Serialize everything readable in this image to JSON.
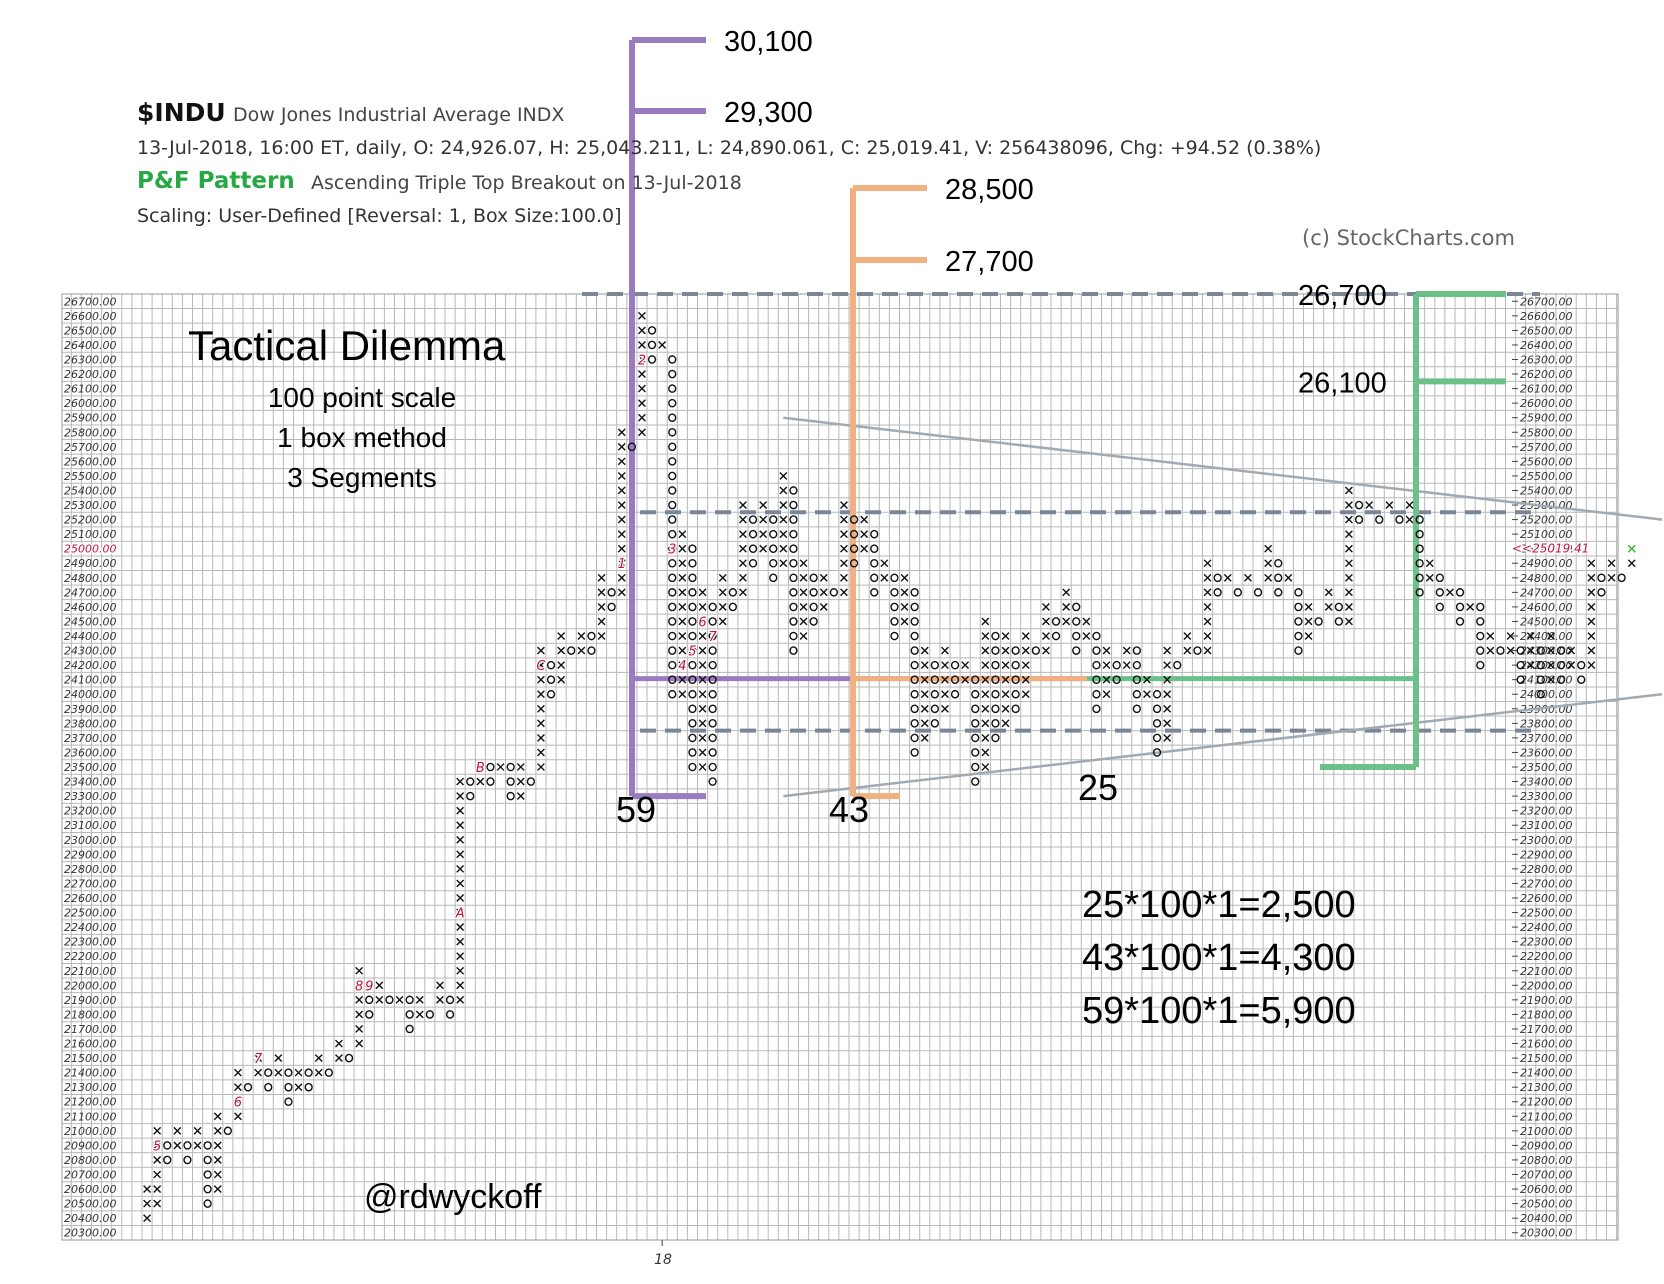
{
  "header": {
    "symbol": "$INDU",
    "name": "Dow Jones Industrial Average  INDX",
    "quote": "13-Jul-2018, 16:00 ET, daily, O: 24,926.07, H: 25,043.211, L: 24,890.061, C: 25,019.41, V: 256438096, Chg: +94.52 (0.38%)",
    "pattern_label": "P&F Pattern",
    "pattern_text": "Ascending Triple Top Breakout on 13-Jul-2018",
    "scaling": "Scaling: User-Defined [Reversal: 1, Box Size:100.0]",
    "copyright": "(c) StockCharts.com"
  },
  "annotations": {
    "title": "Tactical Dilemma",
    "subtitle_lines": [
      "100 point scale",
      "1 box method",
      "3 Segments"
    ],
    "handle": "@rdwyckoff",
    "calculations": [
      "25*100*1=2,500",
      "43*100*1=4,300",
      "59*100*1=5,900"
    ]
  },
  "colors": {
    "x_mark": "#111111",
    "o_mark": "#111111",
    "grid": "#b8b8b8",
    "purple": "#9b7bbf",
    "orange": "#f0b080",
    "green": "#6cc08a",
    "dashed": "#7a8595",
    "trend": "#a0aab4",
    "month_label": "#c0143c",
    "last_price": "#c0143c",
    "last_x": "#2db82d"
  },
  "chart_data": {
    "type": "point-and-figure",
    "box_size": 100,
    "reversal": 1,
    "y_range": [
      20300,
      26700
    ],
    "year_label": "18",
    "last_price_label": "<<25019.41",
    "left_axis_marker": "25000.00",
    "columns": [
      {
        "type": "X",
        "low": 20400,
        "high": 20600
      },
      {
        "type": "X",
        "low": 20500,
        "high": 21000
      },
      {
        "type": "O",
        "low": 20800,
        "high": 20900
      },
      {
        "type": "X",
        "low": 20900,
        "high": 21000
      },
      {
        "type": "O",
        "low": 20800,
        "high": 20900
      },
      {
        "type": "X",
        "low": 20900,
        "high": 21000
      },
      {
        "type": "O",
        "low": 20500,
        "high": 20900
      },
      {
        "type": "X",
        "low": 20600,
        "high": 21100
      },
      {
        "type": "O",
        "low": 21000,
        "high": 21000
      },
      {
        "type": "X",
        "low": 21100,
        "high": 21400
      },
      {
        "type": "O",
        "low": 21300,
        "high": 21300
      },
      {
        "type": "X",
        "low": 21400,
        "high": 21500
      },
      {
        "type": "O",
        "low": 21300,
        "high": 21400
      },
      {
        "type": "X",
        "low": 21400,
        "high": 21500
      },
      {
        "type": "O",
        "low": 21200,
        "high": 21400
      },
      {
        "type": "X",
        "low": 21300,
        "high": 21400
      },
      {
        "type": "O",
        "low": 21300,
        "high": 21400
      },
      {
        "type": "X",
        "low": 21400,
        "high": 21500
      },
      {
        "type": "O",
        "low": 21400,
        "high": 21400
      },
      {
        "type": "X",
        "low": 21500,
        "high": 21600
      },
      {
        "type": "O",
        "low": 21500,
        "high": 21500
      },
      {
        "type": "X",
        "low": 21600,
        "high": 22100
      },
      {
        "type": "O",
        "low": 21800,
        "high": 22000
      },
      {
        "type": "X",
        "low": 21900,
        "high": 22000
      },
      {
        "type": "O",
        "low": 21900,
        "high": 21900
      },
      {
        "type": "X",
        "low": 21900,
        "high": 21900
      },
      {
        "type": "O",
        "low": 21700,
        "high": 21900
      },
      {
        "type": "X",
        "low": 21800,
        "high": 21900
      },
      {
        "type": "O",
        "low": 21800,
        "high": 21800
      },
      {
        "type": "X",
        "low": 21900,
        "high": 22000
      },
      {
        "type": "O",
        "low": 21800,
        "high": 21900
      },
      {
        "type": "X",
        "low": 21900,
        "high": 23400
      },
      {
        "type": "O",
        "low": 23300,
        "high": 23400
      },
      {
        "type": "X",
        "low": 23400,
        "high": 23500
      },
      {
        "type": "O",
        "low": 23400,
        "high": 23500
      },
      {
        "type": "X",
        "low": 23500,
        "high": 23500
      },
      {
        "type": "O",
        "low": 23300,
        "high": 23500
      },
      {
        "type": "X",
        "low": 23300,
        "high": 23500
      },
      {
        "type": "O",
        "low": 23400,
        "high": 23400
      },
      {
        "type": "X",
        "low": 23500,
        "high": 24300
      },
      {
        "type": "O",
        "low": 24000,
        "high": 24200
      },
      {
        "type": "X",
        "low": 24100,
        "high": 24400
      },
      {
        "type": "O",
        "low": 24300,
        "high": 24300
      },
      {
        "type": "X",
        "low": 24300,
        "high": 24400
      },
      {
        "type": "O",
        "low": 24300,
        "high": 24400
      },
      {
        "type": "X",
        "low": 24400,
        "high": 24800
      },
      {
        "type": "O",
        "low": 24600,
        "high": 24700
      },
      {
        "type": "X",
        "low": 24700,
        "high": 25800
      },
      {
        "type": "O",
        "low": 25700,
        "high": 25700
      },
      {
        "type": "X",
        "low": 25800,
        "high": 26600
      },
      {
        "type": "O",
        "low": 26300,
        "high": 26500
      },
      {
        "type": "X",
        "low": 26400,
        "high": 26400
      },
      {
        "type": "O",
        "low": 24000,
        "high": 26300
      },
      {
        "type": "X",
        "low": 24000,
        "high": 25100
      },
      {
        "type": "O",
        "low": 23500,
        "high": 25000
      },
      {
        "type": "X",
        "low": 23500,
        "high": 24700
      },
      {
        "type": "O",
        "low": 23400,
        "high": 24600
      },
      {
        "type": "X",
        "low": 24500,
        "high": 24800
      },
      {
        "type": "O",
        "low": 24600,
        "high": 24700
      },
      {
        "type": "X",
        "low": 24700,
        "high": 25300
      },
      {
        "type": "O",
        "low": 24900,
        "high": 25200
      },
      {
        "type": "X",
        "low": 25000,
        "high": 25300
      },
      {
        "type": "O",
        "low": 24800,
        "high": 25200
      },
      {
        "type": "X",
        "low": 24900,
        "high": 25500
      },
      {
        "type": "O",
        "low": 24300,
        "high": 25400
      },
      {
        "type": "X",
        "low": 24400,
        "high": 24900
      },
      {
        "type": "O",
        "low": 24500,
        "high": 24800
      },
      {
        "type": "X",
        "low": 24600,
        "high": 24800
      },
      {
        "type": "O",
        "low": 24700,
        "high": 24700
      },
      {
        "type": "X",
        "low": 24700,
        "high": 25300
      },
      {
        "type": "O",
        "low": 24900,
        "high": 25200
      },
      {
        "type": "X",
        "low": 25000,
        "high": 25200
      },
      {
        "type": "O",
        "low": 24700,
        "high": 25100
      },
      {
        "type": "X",
        "low": 24800,
        "high": 24900
      },
      {
        "type": "O",
        "low": 24400,
        "high": 24800
      },
      {
        "type": "X",
        "low": 24500,
        "high": 24800
      },
      {
        "type": "O",
        "low": 23600,
        "high": 24700
      },
      {
        "type": "X",
        "low": 23700,
        "high": 24300
      },
      {
        "type": "O",
        "low": 23800,
        "high": 24200
      },
      {
        "type": "X",
        "low": 23900,
        "high": 24300
      },
      {
        "type": "O",
        "low": 24000,
        "high": 24200
      },
      {
        "type": "X",
        "low": 24100,
        "high": 24200
      },
      {
        "type": "O",
        "low": 23400,
        "high": 24100
      },
      {
        "type": "X",
        "low": 23500,
        "high": 24500
      },
      {
        "type": "O",
        "low": 23700,
        "high": 24400
      },
      {
        "type": "X",
        "low": 23800,
        "high": 24400
      },
      {
        "type": "O",
        "low": 23900,
        "high": 24300
      },
      {
        "type": "X",
        "low": 24000,
        "high": 24400
      },
      {
        "type": "O",
        "low": 24300,
        "high": 24300
      },
      {
        "type": "X",
        "low": 24300,
        "high": 24600
      },
      {
        "type": "O",
        "low": 24400,
        "high": 24500
      },
      {
        "type": "X",
        "low": 24500,
        "high": 24700
      },
      {
        "type": "O",
        "low": 24300,
        "high": 24600
      },
      {
        "type": "X",
        "low": 24400,
        "high": 24500
      },
      {
        "type": "O",
        "low": 23900,
        "high": 24400
      },
      {
        "type": "X",
        "low": 24000,
        "high": 24300
      },
      {
        "type": "O",
        "low": 24100,
        "high": 24200
      },
      {
        "type": "X",
        "low": 24200,
        "high": 24300
      },
      {
        "type": "O",
        "low": 23900,
        "high": 24300
      },
      {
        "type": "X",
        "low": 24000,
        "high": 24100
      },
      {
        "type": "O",
        "low": 23600,
        "high": 24000
      },
      {
        "type": "X",
        "low": 23700,
        "high": 24300
      },
      {
        "type": "O",
        "low": 24200,
        "high": 24200
      },
      {
        "type": "X",
        "low": 24300,
        "high": 24400
      },
      {
        "type": "O",
        "low": 24300,
        "high": 24300
      },
      {
        "type": "X",
        "low": 24300,
        "high": 24900
      },
      {
        "type": "O",
        "low": 24700,
        "high": 24800
      },
      {
        "type": "X",
        "low": 24800,
        "high": 24800
      },
      {
        "type": "O",
        "low": 24700,
        "high": 24700
      },
      {
        "type": "X",
        "low": 24800,
        "high": 24800
      },
      {
        "type": "O",
        "low": 24700,
        "high": 24700
      },
      {
        "type": "X",
        "low": 24800,
        "high": 25000
      },
      {
        "type": "O",
        "low": 24700,
        "high": 24900
      },
      {
        "type": "X",
        "low": 24800,
        "high": 24800
      },
      {
        "type": "O",
        "low": 24300,
        "high": 24700
      },
      {
        "type": "X",
        "low": 24400,
        "high": 24600
      },
      {
        "type": "O",
        "low": 24500,
        "high": 24500
      },
      {
        "type": "X",
        "low": 24600,
        "high": 24700
      },
      {
        "type": "O",
        "low": 24500,
        "high": 24600
      },
      {
        "type": "X",
        "low": 24500,
        "high": 25400
      },
      {
        "type": "O",
        "low": 25200,
        "high": 25300
      },
      {
        "type": "X",
        "low": 25300,
        "high": 25300
      },
      {
        "type": "O",
        "low": 25200,
        "high": 25200
      },
      {
        "type": "X",
        "low": 25300,
        "high": 25300
      },
      {
        "type": "O",
        "low": 25200,
        "high": 25200
      },
      {
        "type": "X",
        "low": 25200,
        "high": 25300
      },
      {
        "type": "O",
        "low": 24700,
        "high": 25200
      },
      {
        "type": "X",
        "low": 24800,
        "high": 24900
      },
      {
        "type": "O",
        "low": 24600,
        "high": 24800
      },
      {
        "type": "X",
        "low": 24700,
        "high": 24700
      },
      {
        "type": "O",
        "low": 24500,
        "high": 24700
      },
      {
        "type": "X",
        "low": 24600,
        "high": 24600
      },
      {
        "type": "O",
        "low": 24200,
        "high": 24600
      },
      {
        "type": "X",
        "low": 24300,
        "high": 24400
      },
      {
        "type": "O",
        "low": 24300,
        "high": 24300
      },
      {
        "type": "X",
        "low": 24300,
        "high": 24400
      },
      {
        "type": "O",
        "low": 24100,
        "high": 24300
      },
      {
        "type": "X",
        "low": 24200,
        "high": 24400
      },
      {
        "type": "O",
        "low": 24000,
        "high": 24300
      },
      {
        "type": "X",
        "low": 24100,
        "high": 24400
      },
      {
        "type": "O",
        "low": 24100,
        "high": 24300
      },
      {
        "type": "X",
        "low": 24200,
        "high": 24300
      },
      {
        "type": "O",
        "low": 24100,
        "high": 24200
      },
      {
        "type": "X",
        "low": 24200,
        "high": 24900
      },
      {
        "type": "O",
        "low": 24700,
        "high": 24800
      },
      {
        "type": "X",
        "low": 24800,
        "high": 24900
      },
      {
        "type": "O",
        "low": 24800,
        "high": 24800
      },
      {
        "type": "X",
        "low": 24900,
        "high": 25000
      }
    ],
    "month_labels": [
      {
        "label": "5",
        "box_value": 20900
      },
      {
        "label": "6",
        "box_value": 21200
      },
      {
        "label": "7",
        "box_value": 21500
      },
      {
        "label": "8",
        "box_value": 22000
      },
      {
        "label": "9",
        "box_value": 22000
      },
      {
        "label": "A",
        "box_value": 22500
      },
      {
        "label": "B",
        "box_value": 23500
      },
      {
        "label": "C",
        "box_value": 24200
      },
      {
        "label": "1",
        "box_value": 24900
      },
      {
        "label": "2",
        "box_value": 26300
      },
      {
        "label": "3",
        "box_value": 25000
      },
      {
        "label": "4",
        "box_value": 24200
      },
      {
        "label": "5",
        "box_value": 24300
      },
      {
        "label": "6",
        "box_value": 24500
      },
      {
        "label": "7",
        "box_value": 24400
      }
    ],
    "reference_lines": [
      26700,
      25200,
      23700
    ],
    "counts": [
      {
        "count": "59",
        "columns": 59,
        "base_value": 24100,
        "target_values": [
          29300,
          30100
        ],
        "target_labels": [
          "29,300",
          "30,100"
        ]
      },
      {
        "count": "43",
        "columns": 43,
        "base_value": 24100,
        "target_values": [
          27700,
          28500
        ],
        "target_labels": [
          "27,700",
          "28,500"
        ]
      },
      {
        "count": "25",
        "columns": 25,
        "base_value": 24100,
        "target_values": [
          26100,
          26700
        ],
        "target_labels": [
          "26,100",
          "26,700"
        ]
      }
    ],
    "trendlines": [
      {
        "from": [
          63,
          25900
        ],
        "to": [
          150,
          25200
        ]
      },
      {
        "from": [
          63,
          23300
        ],
        "to": [
          150,
          24000
        ]
      }
    ]
  }
}
